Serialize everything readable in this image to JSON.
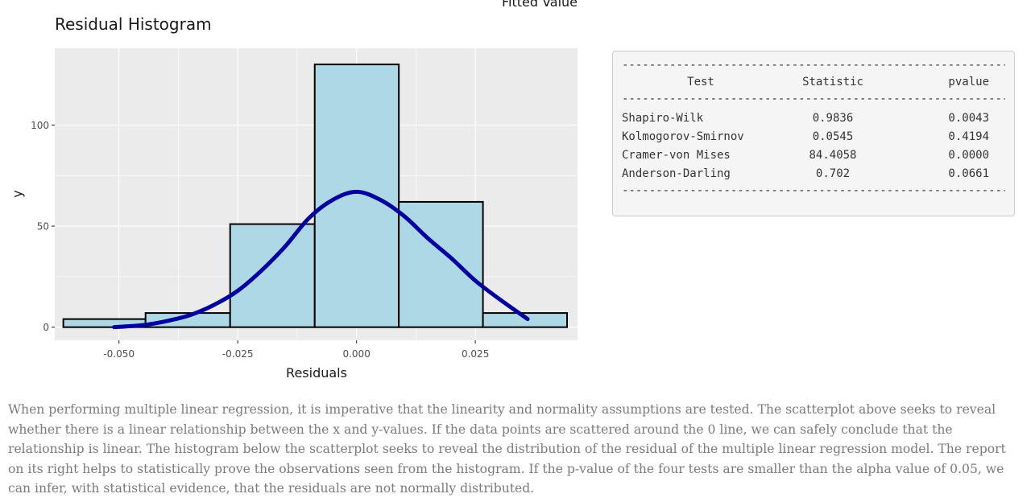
{
  "previous_chart": {
    "xlabel": "Fitted Value"
  },
  "chart_data": {
    "type": "bar",
    "title": "Residual Histogram",
    "xlabel": "Residuals",
    "ylabel": "y",
    "xlim": [
      -0.0635,
      0.0465
    ],
    "ylim": [
      -6.5,
      138
    ],
    "xticks": [
      -0.05,
      -0.025,
      0,
      0.025
    ],
    "xtick_labels": [
      "-0.050",
      "-0.025",
      "0.000",
      "0.025"
    ],
    "yticks": [
      0,
      50,
      100
    ],
    "ytick_labels": [
      "0",
      "50",
      "100"
    ],
    "grid": true,
    "colors": {
      "panel": "#ebebeb",
      "grid": "#ffffff",
      "bar_fill": "#add8e6",
      "bar_edge": "#000000",
      "curve": "#0000a0"
    },
    "bins": [
      {
        "x0": -0.0617,
        "x1": -0.0444,
        "count": 4
      },
      {
        "x0": -0.0444,
        "x1": -0.0266,
        "count": 7
      },
      {
        "x0": -0.0266,
        "x1": -0.0088,
        "count": 51
      },
      {
        "x0": -0.0088,
        "x1": 0.0089,
        "count": 130
      },
      {
        "x0": 0.0089,
        "x1": 0.0266,
        "count": 62
      },
      {
        "x0": 0.0266,
        "x1": 0.0443,
        "count": 7
      }
    ],
    "normal_curve": {
      "x": [
        -0.051,
        -0.045,
        -0.04,
        -0.035,
        -0.03,
        -0.025,
        -0.02,
        -0.015,
        -0.01,
        -0.005,
        0.0,
        0.005,
        0.01,
        0.015,
        0.02,
        0.025,
        0.03,
        0.036
      ],
      "y": [
        0,
        1,
        3,
        6,
        11,
        18,
        28,
        40,
        54,
        63,
        67,
        63,
        55,
        44,
        34,
        23,
        14,
        4
      ]
    }
  },
  "report": {
    "divider": "------------------------------------------------------------",
    "headers": {
      "test": "Test",
      "statistic": "Statistic",
      "pvalue": "pvalue"
    },
    "rows": [
      {
        "test": "Shapiro-Wilk",
        "statistic": "0.9836",
        "pvalue": "0.0043"
      },
      {
        "test": "Kolmogorov-Smirnov",
        "statistic": "0.0545",
        "pvalue": "0.4194"
      },
      {
        "test": "Cramer-von Mises",
        "statistic": "84.4058",
        "pvalue": "0.0000"
      },
      {
        "test": "Anderson-Darling",
        "statistic": "0.702",
        "pvalue": "0.0661"
      }
    ]
  },
  "paragraph": "When performing multiple linear regression, it is imperative that the linearity and normality assumptions are tested. The scatterplot above seeks to reveal whether there is a linear relationship between the x and y-values. If the data points are scattered around the 0 line, we can safely conclude that the relationship is linear. The histogram below the scatterplot seeks to reveal the distribution of the residual of the multiple linear regression model. The report on its right helps to statistically prove the observations seen from the histogram. If the p-value of the four tests are smaller than the alpha value of 0.05, we can infer, with statistical evidence, that the residuals are not normally distributed."
}
